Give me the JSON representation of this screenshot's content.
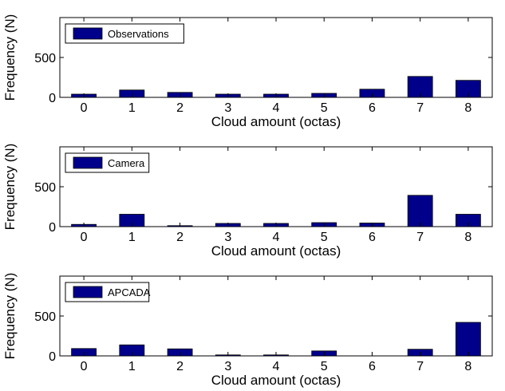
{
  "chart_data": [
    {
      "type": "bar",
      "categories": [
        "0",
        "1",
        "2",
        "3",
        "4",
        "5",
        "6",
        "7",
        "8"
      ],
      "series": [
        {
          "name": "Observations",
          "values": [
            40,
            92,
            62,
            40,
            40,
            50,
            102,
            262,
            213
          ]
        }
      ],
      "xlabel": "Cloud amount (octas)",
      "ylabel": "Frequency (N)",
      "ylim": [
        0,
        1000
      ],
      "yticks": [
        0,
        500
      ],
      "grid": false,
      "legend_position": "top-left"
    },
    {
      "type": "bar",
      "categories": [
        "0",
        "1",
        "2",
        "3",
        "4",
        "5",
        "6",
        "7",
        "8"
      ],
      "series": [
        {
          "name": "Camera",
          "values": [
            28,
            155,
            12,
            40,
            40,
            50,
            45,
            392,
            155
          ]
        }
      ],
      "xlabel": "Cloud amount (octas)",
      "ylabel": "Frequency (N)",
      "ylim": [
        0,
        1000
      ],
      "yticks": [
        0,
        500
      ],
      "grid": false,
      "legend_position": "top-left"
    },
    {
      "type": "bar",
      "categories": [
        "0",
        "1",
        "2",
        "3",
        "4",
        "5",
        "6",
        "7",
        "8"
      ],
      "series": [
        {
          "name": "APCADA",
          "values": [
            92,
            138,
            88,
            12,
            12,
            62,
            0,
            83,
            420
          ]
        }
      ],
      "xlabel": "Cloud amount (octas)",
      "ylabel": "Frequency (N)",
      "ylim": [
        0,
        1000
      ],
      "yticks": [
        0,
        500
      ],
      "grid": false,
      "legend_position": "top-left"
    }
  ],
  "colors": {
    "bar": "#00008b",
    "axis": "#000000",
    "background": "#ffffff"
  }
}
